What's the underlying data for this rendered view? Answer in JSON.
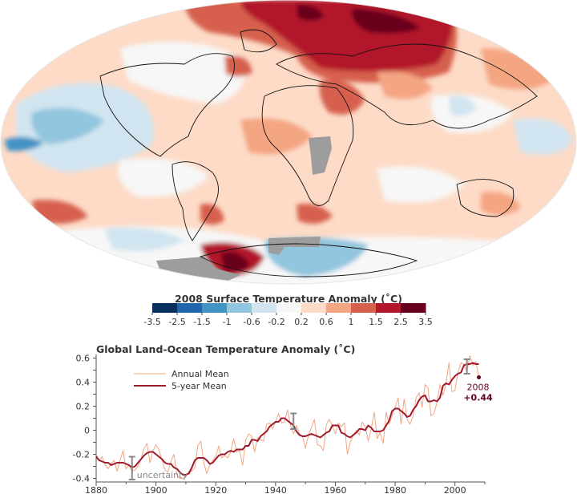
{
  "map": {
    "title": "2008 Surface Temperature Anomaly (˚C)",
    "colorbar": {
      "ticks": [
        "-3.5",
        "-2.5",
        "-1.5",
        "-1",
        "-0.6",
        "-0.2",
        "0.2",
        "0.6",
        "1",
        "1.5",
        "2.5",
        "3.5"
      ],
      "colors": [
        "#08305e",
        "#2166ac",
        "#4393c3",
        "#92c5de",
        "#d1e5f0",
        "#f7f7f7",
        "#fddbc7",
        "#f4a582",
        "#d6604d",
        "#b2182b",
        "#67001f"
      ]
    },
    "colors": {
      "strong_warm": "#b2182b",
      "warm": "#d6604d",
      "mild_warm": "#f4a582",
      "light_warm": "#fddbc7",
      "neutral": "#f7f7f7",
      "light_cool": "#d1e5f0",
      "cool": "#92c5de",
      "strong_cool": "#4393c3",
      "no_data": "#9d9d9d"
    }
  },
  "chart_data": {
    "type": "line",
    "title": "Global Land-Ocean Temperature Anomaly (˚C)",
    "xlim": [
      1880,
      2010
    ],
    "ylim": [
      -0.43,
      0.63
    ],
    "x_ticks": [
      "1880",
      "1900",
      "1920",
      "1940",
      "1960",
      "1980",
      "2000"
    ],
    "y_ticks": [
      "-0.4",
      "-0.2",
      "0",
      "0.2",
      "0.4",
      "0.6"
    ],
    "legend": {
      "position": "top-left",
      "annual": "Annual Mean",
      "five_year": "5-year Mean"
    },
    "annotation": {
      "year": "2008",
      "value": "+0.44",
      "x": 2008,
      "y": 0.44
    },
    "uncertainty_label": "uncertainty",
    "error_bars": [
      {
        "x": 1892,
        "low": -0.41,
        "high": -0.22
      },
      {
        "x": 1946,
        "low": 0.01,
        "high": 0.14
      },
      {
        "x": 2004,
        "low": 0.47,
        "high": 0.59
      }
    ],
    "x": [
      1880,
      1881,
      1882,
      1883,
      1884,
      1885,
      1886,
      1887,
      1888,
      1889,
      1890,
      1891,
      1892,
      1893,
      1894,
      1895,
      1896,
      1897,
      1898,
      1899,
      1900,
      1901,
      1902,
      1903,
      1904,
      1905,
      1906,
      1907,
      1908,
      1909,
      1910,
      1911,
      1912,
      1913,
      1914,
      1915,
      1916,
      1917,
      1918,
      1919,
      1920,
      1921,
      1922,
      1923,
      1924,
      1925,
      1926,
      1927,
      1928,
      1929,
      1930,
      1931,
      1932,
      1933,
      1934,
      1935,
      1936,
      1937,
      1938,
      1939,
      1940,
      1941,
      1942,
      1943,
      1944,
      1945,
      1946,
      1947,
      1948,
      1949,
      1950,
      1951,
      1952,
      1953,
      1954,
      1955,
      1956,
      1957,
      1958,
      1959,
      1960,
      1961,
      1962,
      1963,
      1964,
      1965,
      1966,
      1967,
      1968,
      1969,
      1970,
      1971,
      1972,
      1973,
      1974,
      1975,
      1976,
      1977,
      1978,
      1979,
      1980,
      1981,
      1982,
      1983,
      1984,
      1985,
      1986,
      1987,
      1988,
      1989,
      1990,
      1991,
      1992,
      1993,
      1994,
      1995,
      1996,
      1997,
      1998,
      1999,
      2000,
      2001,
      2002,
      2003,
      2004,
      2005,
      2006,
      2007,
      2008
    ],
    "series": [
      {
        "name": "Annual Mean",
        "color": "#f4a582",
        "values": [
          -0.2,
          -0.25,
          -0.22,
          -0.29,
          -0.32,
          -0.28,
          -0.25,
          -0.34,
          -0.25,
          -0.17,
          -0.32,
          -0.29,
          -0.34,
          -0.33,
          -0.3,
          -0.24,
          -0.15,
          -0.11,
          -0.27,
          -0.17,
          -0.12,
          -0.16,
          -0.25,
          -0.33,
          -0.35,
          -0.26,
          -0.2,
          -0.37,
          -0.4,
          -0.4,
          -0.39,
          -0.34,
          -0.34,
          -0.31,
          -0.13,
          -0.09,
          -0.27,
          -0.36,
          -0.29,
          -0.25,
          -0.22,
          -0.13,
          -0.23,
          -0.21,
          -0.23,
          -0.18,
          -0.07,
          -0.18,
          -0.17,
          -0.29,
          -0.08,
          -0.03,
          -0.05,
          -0.18,
          -0.06,
          -0.08,
          -0.09,
          0.05,
          0.06,
          0.01,
          0.07,
          0.14,
          0.06,
          0.07,
          0.17,
          0.04,
          -0.03,
          0.04,
          -0.03,
          -0.05,
          -0.15,
          -0.04,
          0.02,
          0.09,
          -0.12,
          -0.13,
          -0.17,
          0.05,
          0.09,
          0.04,
          -0.03,
          0.06,
          0.03,
          0.06,
          -0.2,
          -0.1,
          -0.04,
          0.0,
          -0.04,
          0.07,
          0.03,
          -0.09,
          0.01,
          0.15,
          -0.07,
          -0.02,
          -0.11,
          0.15,
          0.05,
          0.12,
          0.19,
          0.27,
          0.05,
          0.26,
          0.09,
          0.05,
          0.12,
          0.27,
          0.31,
          0.19,
          0.38,
          0.35,
          0.12,
          0.14,
          0.23,
          0.38,
          0.29,
          0.39,
          0.56,
          0.32,
          0.33,
          0.48,
          0.56,
          0.55,
          0.48,
          0.62,
          0.54,
          0.57,
          0.44
        ]
      },
      {
        "name": "5-year Mean",
        "color": "#9e1a2c",
        "values": [
          -0.22,
          -0.25,
          -0.26,
          -0.27,
          -0.27,
          -0.29,
          -0.28,
          -0.27,
          -0.27,
          -0.27,
          -0.28,
          -0.29,
          -0.31,
          -0.3,
          -0.27,
          -0.24,
          -0.21,
          -0.19,
          -0.18,
          -0.18,
          -0.2,
          -0.22,
          -0.24,
          -0.27,
          -0.28,
          -0.28,
          -0.31,
          -0.32,
          -0.35,
          -0.37,
          -0.37,
          -0.36,
          -0.31,
          -0.25,
          -0.23,
          -0.23,
          -0.23,
          -0.25,
          -0.28,
          -0.27,
          -0.24,
          -0.21,
          -0.2,
          -0.2,
          -0.18,
          -0.17,
          -0.18,
          -0.16,
          -0.16,
          -0.16,
          -0.13,
          -0.13,
          -0.08,
          -0.08,
          -0.09,
          -0.05,
          -0.03,
          -0.01,
          0.03,
          0.05,
          0.07,
          0.07,
          0.1,
          0.1,
          0.08,
          0.06,
          0.04,
          -0.01,
          -0.04,
          -0.05,
          -0.05,
          -0.04,
          -0.03,
          -0.04,
          -0.05,
          -0.06,
          -0.04,
          -0.02,
          -0.01,
          0.04,
          0.04,
          0.04,
          -0.02,
          -0.03,
          -0.05,
          -0.06,
          -0.04,
          -0.02,
          0.01,
          0.01,
          0.0,
          0.04,
          0.02,
          -0.01,
          -0.01,
          -0.01,
          0.0,
          0.04,
          0.08,
          0.16,
          0.18,
          0.18,
          0.16,
          0.14,
          0.11,
          0.12,
          0.17,
          0.2,
          0.25,
          0.28,
          0.29,
          0.24,
          0.24,
          0.25,
          0.24,
          0.27,
          0.37,
          0.39,
          0.38,
          0.42,
          0.45,
          0.47,
          0.48,
          0.54,
          0.55,
          0.55,
          0.56,
          0.55,
          0.55
        ]
      }
    ]
  }
}
